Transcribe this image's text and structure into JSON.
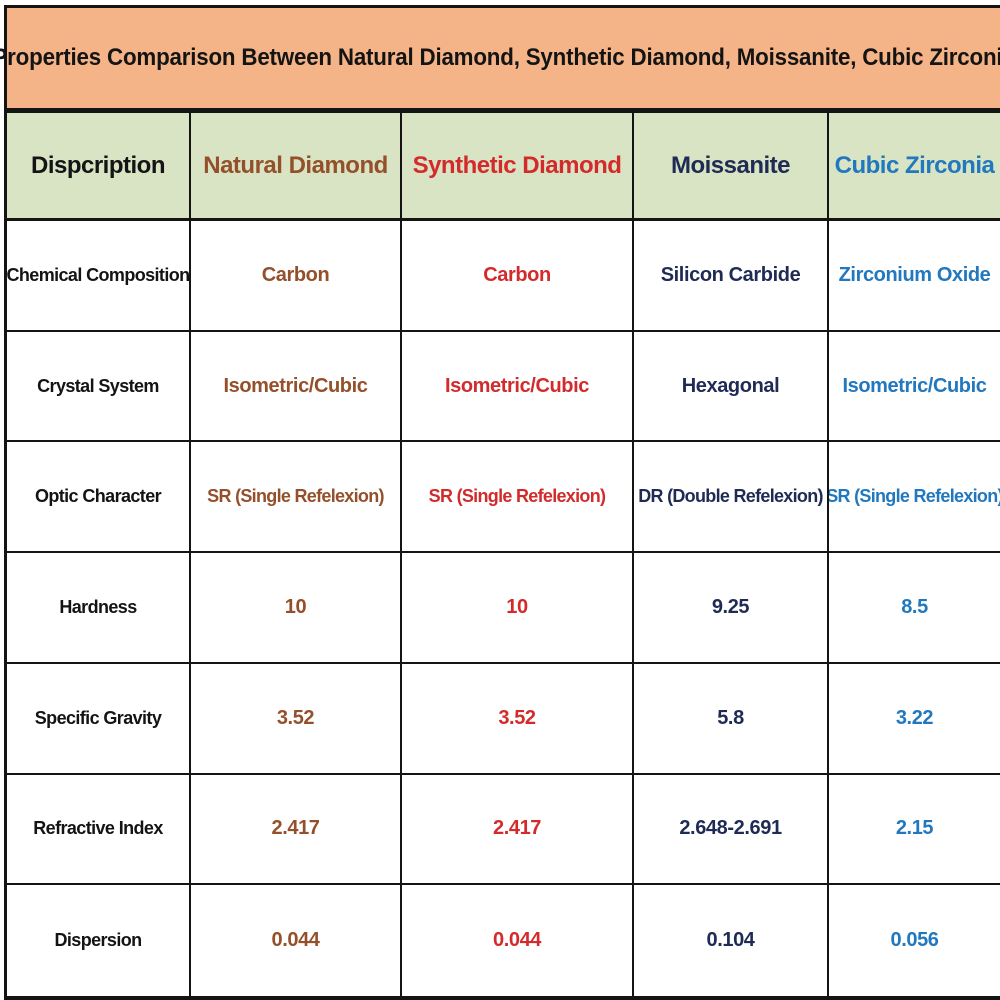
{
  "title": "Properties Comparison Between Natural Diamond, Synthetic Diamond, Moissanite, Cubic Zirconia",
  "colors": {
    "title_background": "#F5B487",
    "header_background": "#D9E4C4",
    "border": "#141414",
    "natural_diamond_text": "#94502A",
    "synthetic_diamond_text": "#D32B2B",
    "moissanite_text": "#1F2B55",
    "cubic_zirconia_text": "#2178BE"
  },
  "table": {
    "columns": [
      {
        "label": "Dispcription",
        "color": "#141414"
      },
      {
        "label": "Natural Diamond",
        "color": "#94502A"
      },
      {
        "label": "Synthetic Diamond",
        "color": "#D32B2B"
      },
      {
        "label": "Moissanite",
        "color": "#1F2B55"
      },
      {
        "label": "Cubic Zirconia",
        "color": "#2178BE"
      }
    ],
    "rows": [
      {
        "label": "Chemical Composition",
        "values": [
          "Carbon",
          "Carbon",
          "Silicon Carbide",
          "Zirconium Oxide"
        ]
      },
      {
        "label": "Crystal System",
        "values": [
          "Isometric/Cubic",
          "Isometric/Cubic",
          "Hexagonal",
          "Isometric/Cubic"
        ]
      },
      {
        "label": "Optic Character",
        "values": [
          "SR (Single Refelexion)",
          "SR (Single Refelexion)",
          "DR (Double Refelexion)",
          "SR (Single Refelexion)"
        ]
      },
      {
        "label": "Hardness",
        "values": [
          "10",
          "10",
          "9.25",
          "8.5"
        ]
      },
      {
        "label": "Specific Gravity",
        "values": [
          "3.52",
          "3.52",
          "5.8",
          "3.22"
        ]
      },
      {
        "label": "Refractive Index",
        "values": [
          "2.417",
          "2.417",
          "2.648-2.691",
          "2.15"
        ]
      },
      {
        "label": "Dispersion",
        "values": [
          "0.044",
          "0.044",
          "0.104",
          "0.056"
        ]
      }
    ]
  },
  "chart_data": {
    "type": "table",
    "title": "Properties Comparison Between Natural Diamond, Synthetic Diamond, Moissanite, Cubic Zirconia",
    "columns": [
      "Dispcription",
      "Natural Diamond",
      "Synthetic Diamond",
      "Moissanite",
      "Cubic Zirconia"
    ],
    "rows": [
      [
        "Chemical Composition",
        "Carbon",
        "Carbon",
        "Silicon Carbide",
        "Zirconium Oxide"
      ],
      [
        "Crystal System",
        "Isometric/Cubic",
        "Isometric/Cubic",
        "Hexagonal",
        "Isometric/Cubic"
      ],
      [
        "Optic Character",
        "SR (Single Refelexion)",
        "SR (Single Refelexion)",
        "DR (Double Refelexion)",
        "SR (Single Refelexion)"
      ],
      [
        "Hardness",
        "10",
        "10",
        "9.25",
        "8.5"
      ],
      [
        "Specific Gravity",
        "3.52",
        "3.52",
        "5.8",
        "3.22"
      ],
      [
        "Refractive Index",
        "2.417",
        "2.417",
        "2.648-2.691",
        "2.15"
      ],
      [
        "Dispersion",
        "0.044",
        "0.044",
        "0.104",
        "0.056"
      ]
    ]
  }
}
